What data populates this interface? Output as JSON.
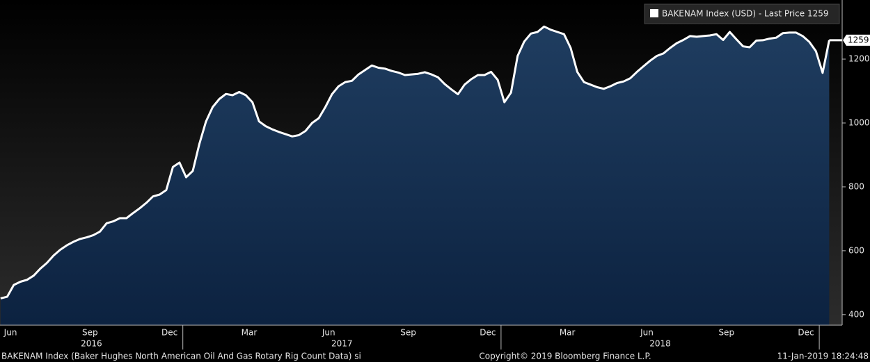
{
  "chart_data": {
    "type": "area",
    "legend": "BAKENAM Index (USD) - Last Price 1259",
    "footer_left": "BAKENAM Index (Baker Hughes North American Oil And Gas Rotary Rig Count Data) si",
    "footer_center": "Copyright© 2019 Bloomberg Finance L.P.",
    "footer_right": "11-Jan-2019 18:24:48",
    "x": [
      "2016-06",
      "2016-06",
      "2016-06",
      "2016-06",
      "2016-07",
      "2016-07",
      "2016-07",
      "2016-07",
      "2016-08",
      "2016-08",
      "2016-08",
      "2016-08",
      "2016-09",
      "2016-09",
      "2016-09",
      "2016-09",
      "2016-10",
      "2016-10",
      "2016-10",
      "2016-10",
      "2016-11",
      "2016-11",
      "2016-11",
      "2016-11",
      "2016-12",
      "2016-12",
      "2016-12",
      "2016-12",
      "2017-01",
      "2017-01",
      "2017-01",
      "2017-01",
      "2017-02",
      "2017-02",
      "2017-02",
      "2017-02",
      "2017-03",
      "2017-03",
      "2017-03",
      "2017-03",
      "2017-04",
      "2017-04",
      "2017-04",
      "2017-04",
      "2017-05",
      "2017-05",
      "2017-05",
      "2017-05",
      "2017-06",
      "2017-06",
      "2017-06",
      "2017-06",
      "2017-07",
      "2017-07",
      "2017-07",
      "2017-07",
      "2017-08",
      "2017-08",
      "2017-08",
      "2017-08",
      "2017-09",
      "2017-09",
      "2017-09",
      "2017-09",
      "2017-10",
      "2017-10",
      "2017-10",
      "2017-10",
      "2017-11",
      "2017-11",
      "2017-11",
      "2017-11",
      "2017-12",
      "2017-12",
      "2017-12",
      "2017-12",
      "2018-01",
      "2018-01",
      "2018-01",
      "2018-01",
      "2018-02",
      "2018-02",
      "2018-02",
      "2018-02",
      "2018-03",
      "2018-03",
      "2018-03",
      "2018-03",
      "2018-04",
      "2018-04",
      "2018-04",
      "2018-04",
      "2018-05",
      "2018-05",
      "2018-05",
      "2018-05",
      "2018-06",
      "2018-06",
      "2018-06",
      "2018-06",
      "2018-07",
      "2018-07",
      "2018-07",
      "2018-07",
      "2018-08",
      "2018-08",
      "2018-08",
      "2018-08",
      "2018-09",
      "2018-09",
      "2018-09",
      "2018-09",
      "2018-10",
      "2018-10",
      "2018-10",
      "2018-10",
      "2018-11",
      "2018-11",
      "2018-11",
      "2018-11",
      "2018-12",
      "2018-12",
      "2018-12",
      "2018-12",
      "2019-01",
      "2019-01"
    ],
    "series": [
      {
        "name": "BAKENAM Index (USD)",
        "color": "#ffffff",
        "values": [
          451,
          456,
          493,
          503,
          509,
          522,
          544,
          562,
          585,
          603,
          617,
          628,
          637,
          642,
          649,
          660,
          686,
          692,
          702,
          702,
          718,
          733,
          750,
          770,
          776,
          790,
          862,
          876,
          830,
          850,
          935,
          1005,
          1050,
          1075,
          1091,
          1087,
          1097,
          1087,
          1065,
          1005,
          990,
          980,
          972,
          965,
          958,
          962,
          975,
          1000,
          1015,
          1050,
          1090,
          1115,
          1128,
          1132,
          1152,
          1166,
          1180,
          1173,
          1170,
          1163,
          1158,
          1150,
          1152,
          1154,
          1159,
          1152,
          1143,
          1122,
          1105,
          1090,
          1120,
          1137,
          1150,
          1150,
          1160,
          1135,
          1065,
          1095,
          1210,
          1255,
          1280,
          1285,
          1302,
          1292,
          1285,
          1278,
          1235,
          1160,
          1128,
          1120,
          1112,
          1107,
          1115,
          1125,
          1130,
          1140,
          1160,
          1178,
          1195,
          1210,
          1218,
          1235,
          1250,
          1260,
          1272,
          1270,
          1272,
          1274,
          1278,
          1260,
          1285,
          1262,
          1240,
          1237,
          1258,
          1259,
          1264,
          1267,
          1281,
          1283,
          1283,
          1272,
          1254,
          1225,
          1157,
          1259
        ]
      }
    ],
    "xlim": [
      "2016-06",
      "2019-01"
    ],
    "xticks": [
      {
        "value": "2016-06",
        "label": "Jun"
      },
      {
        "value": "2016-09",
        "label": "Sep"
      },
      {
        "value": "2016-12",
        "label": "Dec"
      },
      {
        "value": "2017-03",
        "label": "Mar"
      },
      {
        "value": "2017-06",
        "label": "Jun"
      },
      {
        "value": "2017-09",
        "label": "Sep"
      },
      {
        "value": "2017-12",
        "label": "Dec"
      },
      {
        "value": "2018-03",
        "label": "Mar"
      },
      {
        "value": "2018-06",
        "label": "Jun"
      },
      {
        "value": "2018-09",
        "label": "Sep"
      },
      {
        "value": "2018-12",
        "label": "Dec"
      }
    ],
    "year_labels": [
      2016,
      2017,
      2018
    ],
    "ylim": [
      367,
      1385
    ],
    "yticks": [
      400,
      600,
      800,
      1000,
      1200
    ]
  }
}
